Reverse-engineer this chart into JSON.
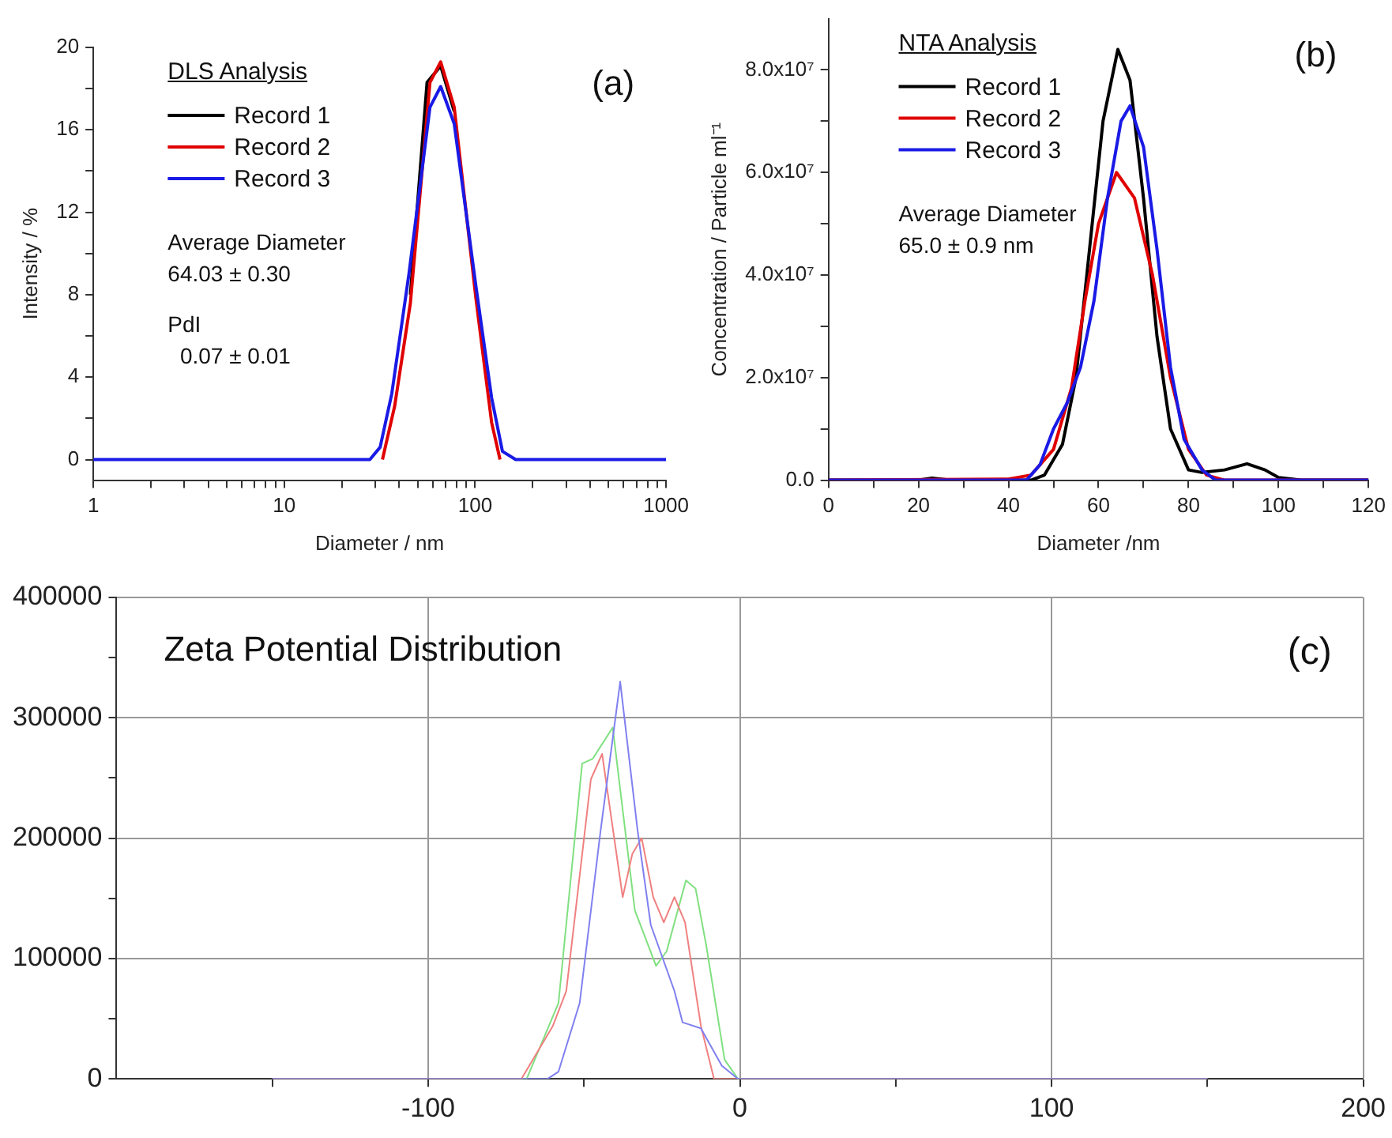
{
  "chart_data": [
    {
      "type": "line",
      "xlabel": "Diameter / nm",
      "ylabel": "Intensity / %",
      "legend_title": "DLS Analysis",
      "legend": "top left",
      "marker": "none",
      "line_style": "solid",
      "grid": false,
      "log": "x",
      "annotations": [
        "(a)",
        "Average Diameter",
        "64.03 ± 0.30",
        "PdI",
        "  0.07 ± 0.01"
      ],
      "xlim": [
        1,
        1000
      ],
      "xticks": [
        1,
        {
          "value": 2,
          "label": null
        },
        {
          "value": 3,
          "label": null
        },
        {
          "value": 4,
          "label": null
        },
        {
          "value": 5,
          "label": null
        },
        {
          "value": 6,
          "label": null
        },
        {
          "value": 7,
          "label": null
        },
        {
          "value": 8,
          "label": null
        },
        {
          "value": 9,
          "label": null
        },
        10,
        {
          "value": 20,
          "label": null
        },
        {
          "value": 30,
          "label": null
        },
        {
          "value": 40,
          "label": null
        },
        {
          "value": 50,
          "label": null
        },
        {
          "value": 60,
          "label": null
        },
        {
          "value": 70,
          "label": null
        },
        {
          "value": 80,
          "label": null
        },
        {
          "value": 90,
          "label": null
        },
        100,
        {
          "value": 200,
          "label": null
        },
        {
          "value": 300,
          "label": null
        },
        {
          "value": 400,
          "label": null
        },
        {
          "value": 500,
          "label": null
        },
        {
          "value": 600,
          "label": null
        },
        {
          "value": 700,
          "label": null
        },
        {
          "value": 800,
          "label": null
        },
        {
          "value": 900,
          "label": null
        },
        1000
      ],
      "ylim": [
        -1,
        20
      ],
      "yticks": [
        0,
        {
          "value": 2,
          "label": null
        },
        4,
        {
          "value": 6,
          "label": null
        },
        8,
        {
          "value": 10,
          "label": null
        },
        12,
        {
          "value": 14,
          "label": null
        },
        16,
        {
          "value": 18,
          "label": null
        },
        20
      ],
      "series": [
        {
          "name": "Record 1",
          "color": "#000000",
          "x": [
            45.8,
            56,
            66,
            77.7
          ],
          "values": [
            8,
            18.3,
            19.1,
            16.9
          ]
        },
        {
          "name": "Record 2",
          "color": "#e00000",
          "x": [
            32.7,
            37.9,
            45.8,
            58,
            66,
            77.7,
            101,
            122,
            135
          ],
          "values": [
            0,
            2.6,
            7.6,
            18.3,
            19.3,
            17.1,
            7.8,
            1.8,
            0
          ]
        },
        {
          "name": "Record 3",
          "color": "#1a1ae6",
          "x": [
            1,
            28.1,
            31.8,
            36.6,
            45,
            58,
            66,
            77.7,
            101,
            122,
            139,
            163,
            1000
          ],
          "values": [
            0,
            0,
            0.6,
            3.2,
            9,
            17.1,
            18.1,
            16.3,
            8.4,
            3,
            0.4,
            0,
            0
          ]
        }
      ]
    },
    {
      "type": "line",
      "xlabel": "Diameter /nm",
      "ylabel": "Concentration / Particle ml⁻¹",
      "legend_title": "NTA Analysis",
      "legend": "top left",
      "marker": "none",
      "line_style": "solid",
      "grid": false,
      "annotations": [
        "(b)",
        "Average Diameter",
        "65.0 ± 0.9 nm"
      ],
      "xlim": [
        0,
        120
      ],
      "xticks": [
        0,
        {
          "value": 10,
          "label": null
        },
        20,
        {
          "value": 30,
          "label": null
        },
        40,
        {
          "value": 50,
          "label": null
        },
        60,
        {
          "value": 70,
          "label": null
        },
        80,
        {
          "value": 90,
          "label": null
        },
        100,
        {
          "value": 110,
          "label": null
        },
        120
      ],
      "ylim": [
        0,
        90000000
      ],
      "yticks": [
        {
          "value": 0,
          "label": "0.0"
        },
        {
          "value": 10000000,
          "label": null
        },
        {
          "value": 20000000,
          "label": "2.0x10⁷"
        },
        {
          "value": 30000000,
          "label": null
        },
        {
          "value": 40000000,
          "label": "4.0x10⁷"
        },
        {
          "value": 50000000,
          "label": null
        },
        {
          "value": 60000000,
          "label": "6.0x10⁷"
        },
        {
          "value": 70000000,
          "label": null
        },
        {
          "value": 80000000,
          "label": "8.0x10⁷"
        }
      ],
      "series": [
        {
          "name": "Record 1",
          "color": "#000000",
          "x": [
            0,
            20,
            23,
            27,
            45,
            48,
            52,
            55,
            58,
            61,
            64.3,
            67,
            70,
            73,
            76,
            80,
            83,
            88,
            93,
            97,
            100,
            105,
            120
          ],
          "values": [
            0,
            0,
            400000,
            0,
            0,
            1000000,
            7000000,
            20000000,
            45000000,
            70000000,
            84000000,
            78000000,
            55000000,
            28000000,
            10000000,
            2000000,
            1500000,
            2000000,
            3200000,
            2000000,
            500000,
            0,
            0
          ]
        },
        {
          "name": "Record 2",
          "color": "#e00000",
          "x": [
            0,
            40,
            45,
            50,
            54,
            57,
            60,
            64,
            68,
            72,
            76,
            80,
            84,
            88,
            120
          ],
          "values": [
            0,
            200000,
            1000000,
            6000000,
            18000000,
            35000000,
            50000000,
            60000000,
            55000000,
            40000000,
            20000000,
            6000000,
            1000000,
            0,
            0
          ]
        },
        {
          "name": "Record 3",
          "color": "#1a1ae6",
          "x": [
            0,
            44,
            47,
            50,
            53,
            56,
            59,
            62,
            65,
            67,
            70,
            73,
            76,
            79,
            83,
            86,
            120
          ],
          "values": [
            0,
            0,
            3000000,
            10000000,
            15000000,
            22000000,
            35000000,
            55000000,
            70000000,
            73000000,
            65000000,
            45000000,
            22000000,
            8000000,
            2000000,
            0,
            0
          ]
        }
      ]
    },
    {
      "type": "line",
      "title": "Zeta Potential Distribution",
      "annotations": [
        "(c)"
      ],
      "marker": "none",
      "line_style": "solid",
      "grid": true,
      "xlim": [
        -200,
        200
      ],
      "xticks": [
        {
          "value": -150,
          "label": null
        },
        -100,
        {
          "value": -50,
          "label": null
        },
        0,
        {
          "value": 50,
          "label": null
        },
        100,
        {
          "value": 150,
          "label": null
        },
        200
      ],
      "ylim": [
        0,
        400000
      ],
      "yticks": [
        0,
        {
          "value": 50000,
          "label": null
        },
        100000,
        {
          "value": 150000,
          "label": null
        },
        200000,
        {
          "value": 250000,
          "label": null
        },
        300000,
        {
          "value": 350000,
          "label": null
        },
        400000
      ],
      "series": [
        {
          "color": "#80e080",
          "x": [
            -150,
            -68.4,
            -58.2,
            -50.6,
            -47.2,
            -40.8,
            -33.7,
            -26.9,
            -23.5,
            -17.3,
            -14.2,
            -10.8,
            -4.9,
            -0.6,
            150
          ],
          "values": [
            0,
            0,
            63000,
            262000,
            266000,
            292000,
            140000,
            94000,
            106000,
            165000,
            158000,
            111000,
            16000,
            0,
            0
          ]
        },
        {
          "color": "#f08080",
          "x": [
            -150,
            -70.1,
            -60,
            -55.7,
            -47.8,
            -44.2,
            -37.6,
            -34.5,
            -31.5,
            -27.8,
            -24.4,
            -21,
            -17.6,
            -12.5,
            -8.3,
            150
          ],
          "values": [
            0,
            0,
            44000,
            73000,
            249000,
            270000,
            151000,
            187000,
            200000,
            151000,
            130000,
            151000,
            130000,
            44000,
            0,
            0
          ]
        },
        {
          "color": "#8080f0",
          "x": [
            -150,
            -61.7,
            -58.2,
            -51.4,
            -44.7,
            -38.4,
            -32.8,
            -28.6,
            -21,
            -18.4,
            -12.5,
            -5.8,
            -0.6,
            150
          ],
          "values": [
            0,
            0,
            6000,
            63000,
            206000,
            330000,
            206000,
            128000,
            73000,
            47000,
            42000,
            11000,
            0,
            0
          ]
        }
      ]
    }
  ]
}
